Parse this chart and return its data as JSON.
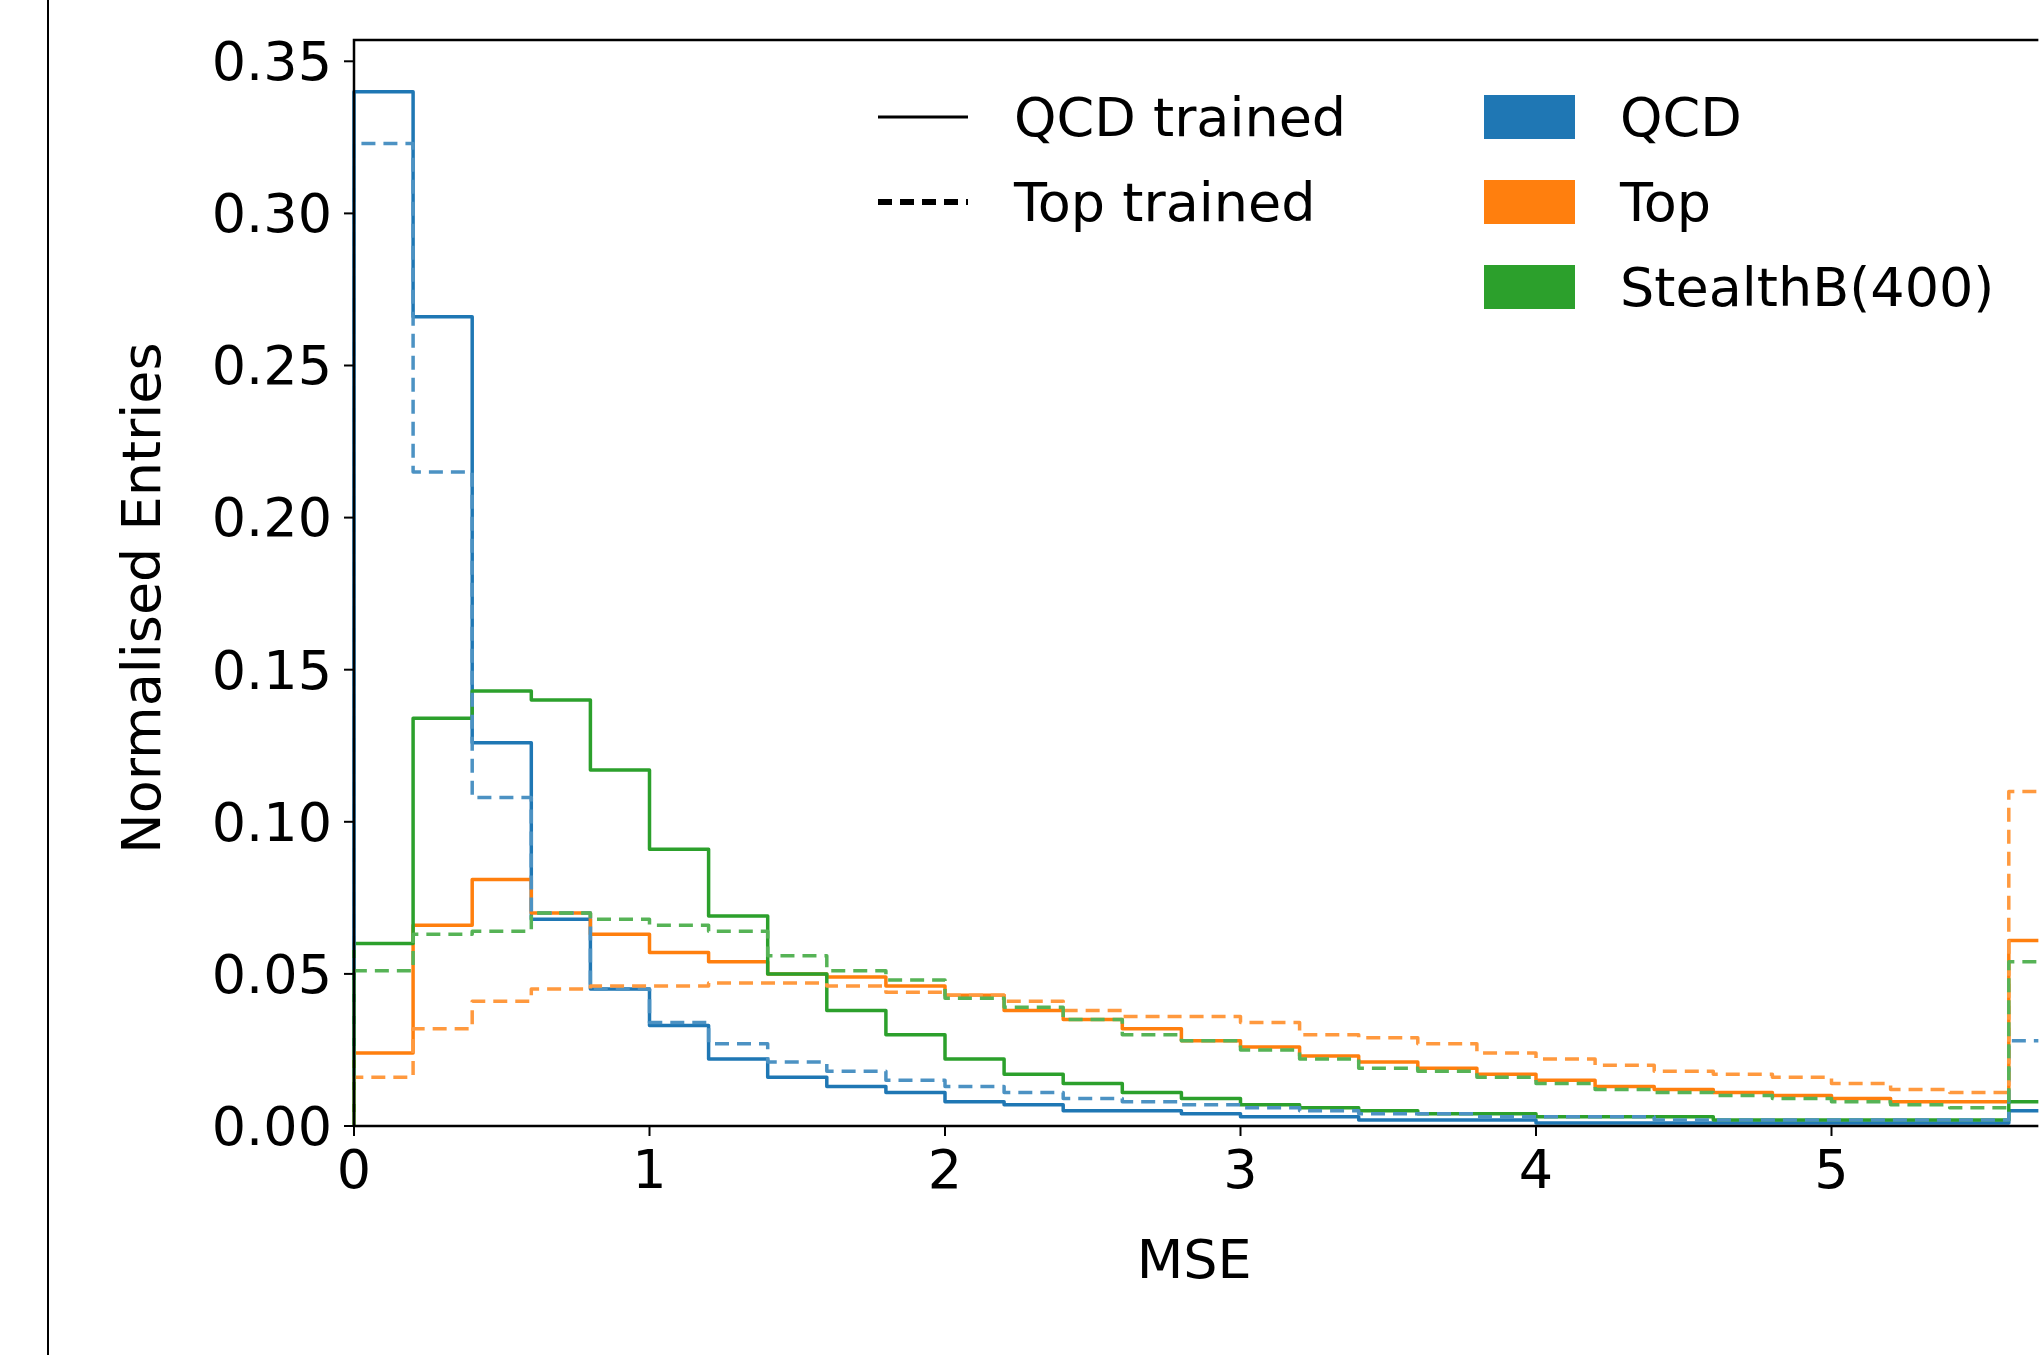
{
  "chart_data": {
    "type": "histogram",
    "xlabel": "MSE",
    "ylabel": "Normalised Entries",
    "bins": [
      0,
      0.2,
      0.4,
      0.6,
      0.8,
      1.0,
      1.2,
      1.4,
      1.6,
      1.8,
      2.0,
      2.2,
      2.4,
      2.6,
      2.8,
      3.0,
      3.2,
      3.4,
      3.6,
      3.8,
      4.0,
      4.2,
      4.4,
      4.6,
      4.8,
      5.0,
      5.2,
      5.4,
      5.6,
      5.7
    ],
    "xlim": [
      0,
      5.7
    ],
    "ylim": [
      0,
      0.357
    ],
    "xticks": [
      0,
      1,
      2,
      3,
      4,
      5
    ],
    "yticks": [
      {
        "value": 0,
        "label": "0.00"
      },
      {
        "value": 0.05,
        "label": "0.05"
      },
      {
        "value": 0.1,
        "label": "0.10"
      },
      {
        "value": 0.15,
        "label": "0.15"
      },
      {
        "value": 0.2,
        "label": "0.20"
      },
      {
        "value": 0.25,
        "label": "0.25"
      },
      {
        "value": 0.3,
        "label": "0.30"
      },
      {
        "value": 0.35,
        "label": "0.35"
      }
    ],
    "legend": "top right",
    "annotations": [
      "QCD trained",
      "Top trained"
    ],
    "series": [
      {
        "name": "QCD",
        "color": "#1f77b4",
        "line_style": "solid",
        "values": [
          0.34,
          0.266,
          0.126,
          0.068,
          0.045,
          0.033,
          0.022,
          0.016,
          0.013,
          0.011,
          0.008,
          0.007,
          0.005,
          0.005,
          0.004,
          0.003,
          0.003,
          0.002,
          0.002,
          0.002,
          0.001,
          0.001,
          0.001,
          0.001,
          0.001,
          0.001,
          0.001,
          0.001,
          0.005
        ]
      },
      {
        "name": "Top",
        "color": "#ff7f0e",
        "line_style": "solid",
        "values": [
          0.024,
          0.066,
          0.081,
          0.07,
          0.063,
          0.057,
          0.054,
          0.05,
          0.049,
          0.046,
          0.043,
          0.038,
          0.035,
          0.032,
          0.028,
          0.026,
          0.023,
          0.021,
          0.019,
          0.017,
          0.015,
          0.013,
          0.012,
          0.011,
          0.01,
          0.009,
          0.008,
          0.008,
          0.061
        ]
      },
      {
        "name": "StealthB(400)",
        "color": "#2ca02c",
        "line_style": "solid",
        "values": [
          0.06,
          0.134,
          0.143,
          0.14,
          0.117,
          0.091,
          0.069,
          0.05,
          0.038,
          0.03,
          0.022,
          0.017,
          0.014,
          0.011,
          0.009,
          0.007,
          0.006,
          0.005,
          0.004,
          0.004,
          0.003,
          0.003,
          0.003,
          0.002,
          0.002,
          0.002,
          0.002,
          0.002,
          0.008
        ]
      },
      {
        "color": "#4c92c3",
        "line_style": "dashed",
        "values": [
          0.323,
          0.215,
          0.108,
          0.07,
          0.045,
          0.034,
          0.027,
          0.021,
          0.018,
          0.015,
          0.013,
          0.011,
          0.009,
          0.008,
          0.007,
          0.006,
          0.005,
          0.004,
          0.004,
          0.003,
          0.003,
          0.003,
          0.002,
          0.002,
          0.002,
          0.002,
          0.002,
          0.002,
          0.028
        ]
      },
      {
        "color": "#ff993e",
        "line_style": "dashed",
        "values": [
          0.016,
          0.032,
          0.041,
          0.045,
          0.046,
          0.046,
          0.047,
          0.047,
          0.046,
          0.044,
          0.043,
          0.041,
          0.038,
          0.036,
          0.036,
          0.034,
          0.03,
          0.029,
          0.027,
          0.024,
          0.022,
          0.02,
          0.018,
          0.017,
          0.016,
          0.014,
          0.012,
          0.011,
          0.11
        ]
      },
      {
        "color": "#56b356",
        "line_style": "dashed",
        "values": [
          0.051,
          0.063,
          0.064,
          0.07,
          0.068,
          0.066,
          0.064,
          0.056,
          0.051,
          0.048,
          0.042,
          0.039,
          0.035,
          0.03,
          0.028,
          0.025,
          0.022,
          0.019,
          0.018,
          0.016,
          0.014,
          0.012,
          0.011,
          0.01,
          0.009,
          0.008,
          0.007,
          0.006,
          0.054
        ]
      }
    ]
  }
}
